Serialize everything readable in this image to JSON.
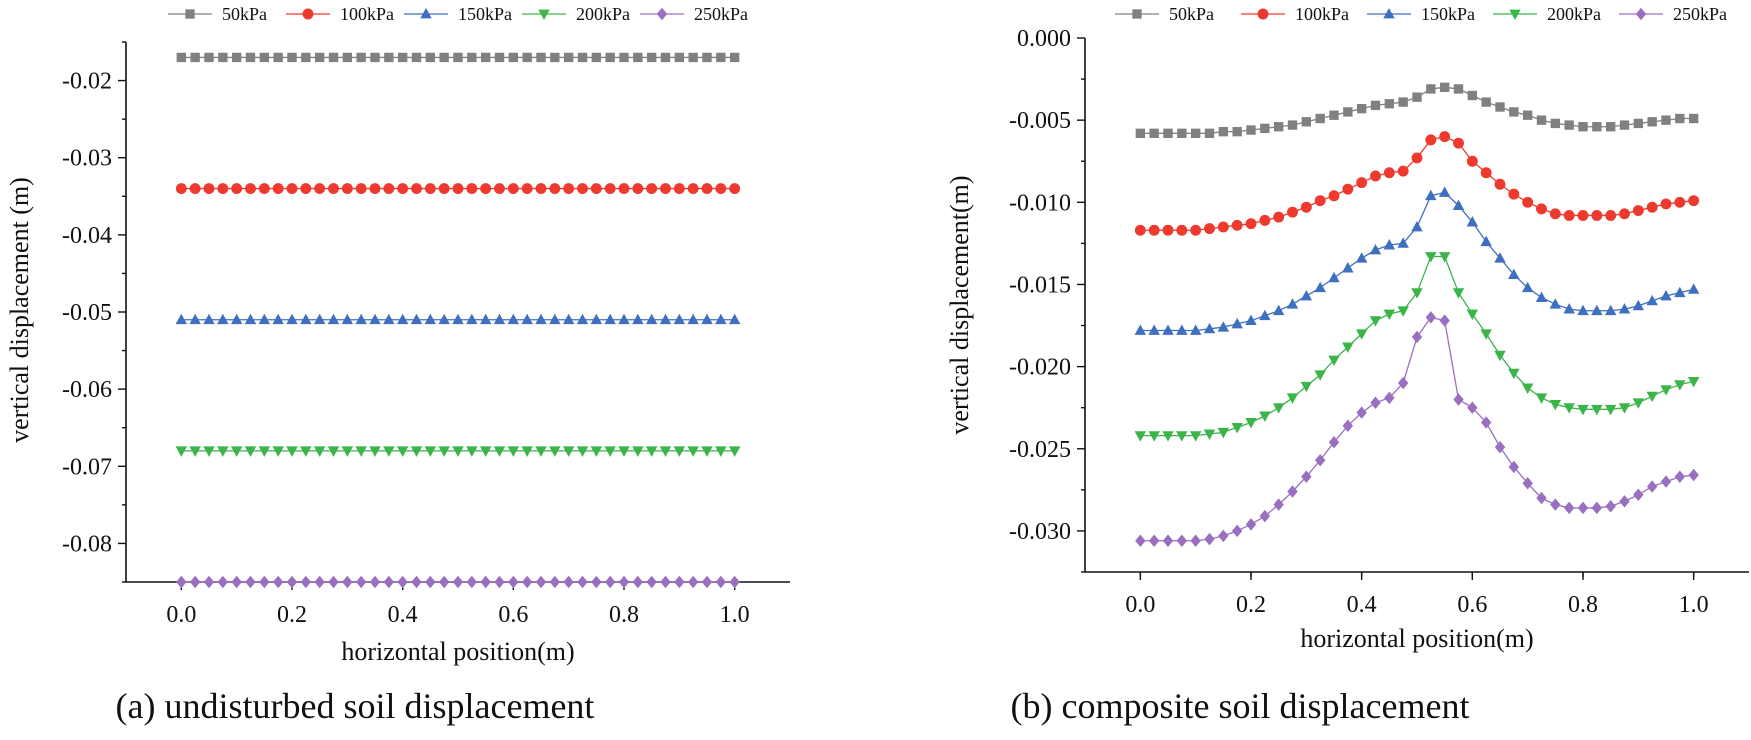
{
  "captions": {
    "left": "(a) undisturbed soil displacement",
    "right": "(b) composite soil displacement"
  },
  "legend": {
    "entries": [
      "50kPa",
      "100kPa",
      "150kPa",
      "200kPa",
      "250kPa"
    ]
  },
  "colors": {
    "series_50": "#808080",
    "series_100": "#ee3a2e",
    "series_150": "#3f6fbf",
    "series_200": "#3bb54a",
    "series_250": "#9b6fbf",
    "axis": "#111111"
  },
  "chart_data": [
    {
      "id": "a",
      "type": "line",
      "title": "(a) undisturbed soil displacement",
      "xlabel": "horizontal position(m)",
      "ylabel": "vertical  displacement (m)",
      "xlim": [
        -0.1,
        1.1
      ],
      "ylim": [
        -0.085,
        -0.015
      ],
      "xticks": [
        0.0,
        0.2,
        0.4,
        0.6,
        0.8,
        1.0
      ],
      "xtick_labels": [
        "0.0",
        "0.2",
        "0.4",
        "0.6",
        "0.8",
        "1.0"
      ],
      "yticks": [
        -0.02,
        -0.03,
        -0.04,
        -0.05,
        -0.06,
        -0.07,
        -0.08
      ],
      "ytick_labels": [
        "-0.02",
        "-0.03",
        "-0.04",
        "-0.05",
        "-0.06",
        "-0.07",
        "-0.08"
      ],
      "x_count": 41,
      "x_range": [
        0.0,
        1.0
      ],
      "series": [
        {
          "name": "50kPa",
          "marker": "square",
          "constant": -0.017
        },
        {
          "name": "100kPa",
          "marker": "circle",
          "constant": -0.034
        },
        {
          "name": "150kPa",
          "marker": "triangle-up",
          "constant": -0.051
        },
        {
          "name": "200kPa",
          "marker": "triangle-down",
          "constant": -0.068
        },
        {
          "name": "250kPa",
          "marker": "diamond",
          "constant": -0.085
        }
      ]
    },
    {
      "id": "b",
      "type": "line",
      "title": "(b) composite soil displacement",
      "xlabel": "horizontal position(m)",
      "ylabel": "vertical  displacement(m)",
      "xlim": [
        -0.1,
        1.1
      ],
      "ylim": [
        -0.0325,
        0.0
      ],
      "xticks": [
        0.0,
        0.2,
        0.4,
        0.6,
        0.8,
        1.0
      ],
      "xtick_labels": [
        "0.0",
        "0.2",
        "0.4",
        "0.6",
        "0.8",
        "1.0"
      ],
      "yticks": [
        0.0,
        -0.005,
        -0.01,
        -0.015,
        -0.02,
        -0.025,
        -0.03
      ],
      "ytick_labels": [
        "0.000",
        "-0.005",
        "-0.010",
        "-0.015",
        "-0.020",
        "-0.025",
        "-0.030"
      ],
      "x_count": 41,
      "x_range": [
        0.0,
        1.0
      ],
      "series": [
        {
          "name": "50kPa",
          "marker": "square",
          "values": [
            -0.0058,
            -0.0058,
            -0.0058,
            -0.0058,
            -0.0058,
            -0.0058,
            -0.0057,
            -0.0057,
            -0.0056,
            -0.0055,
            -0.0054,
            -0.0053,
            -0.0051,
            -0.0049,
            -0.0047,
            -0.0045,
            -0.0043,
            -0.0041,
            -0.004,
            -0.0039,
            -0.0036,
            -0.0031,
            -0.003,
            -0.0031,
            -0.0035,
            -0.0039,
            -0.0042,
            -0.0045,
            -0.0047,
            -0.005,
            -0.0052,
            -0.0053,
            -0.0054,
            -0.0054,
            -0.0054,
            -0.0053,
            -0.0052,
            -0.0051,
            -0.005,
            -0.0049,
            -0.0049
          ]
        },
        {
          "name": "100kPa",
          "marker": "circle",
          "values": [
            -0.0117,
            -0.0117,
            -0.0117,
            -0.0117,
            -0.0117,
            -0.0116,
            -0.0115,
            -0.0114,
            -0.0113,
            -0.0111,
            -0.0109,
            -0.0106,
            -0.0103,
            -0.0099,
            -0.0096,
            -0.0092,
            -0.0088,
            -0.0084,
            -0.0082,
            -0.0081,
            -0.0073,
            -0.0062,
            -0.006,
            -0.0064,
            -0.0075,
            -0.0082,
            -0.0089,
            -0.0095,
            -0.01,
            -0.0104,
            -0.0107,
            -0.0108,
            -0.0108,
            -0.0108,
            -0.0108,
            -0.0107,
            -0.0105,
            -0.0103,
            -0.0101,
            -0.01,
            -0.0099
          ]
        },
        {
          "name": "150kPa",
          "marker": "triangle-up",
          "values": [
            -0.0178,
            -0.0178,
            -0.0178,
            -0.0178,
            -0.0178,
            -0.0177,
            -0.0176,
            -0.0174,
            -0.0172,
            -0.0169,
            -0.0166,
            -0.0162,
            -0.0157,
            -0.0152,
            -0.0146,
            -0.014,
            -0.0134,
            -0.0129,
            -0.0126,
            -0.0125,
            -0.0115,
            -0.0096,
            -0.0094,
            -0.0102,
            -0.0112,
            -0.0124,
            -0.0134,
            -0.0144,
            -0.0152,
            -0.0158,
            -0.0162,
            -0.0165,
            -0.0166,
            -0.0166,
            -0.0166,
            -0.0165,
            -0.0163,
            -0.016,
            -0.0157,
            -0.0155,
            -0.0153
          ]
        },
        {
          "name": "200kPa",
          "marker": "triangle-down",
          "values": [
            -0.0242,
            -0.0242,
            -0.0242,
            -0.0242,
            -0.0242,
            -0.0241,
            -0.024,
            -0.0237,
            -0.0234,
            -0.023,
            -0.0225,
            -0.0219,
            -0.0212,
            -0.0205,
            -0.0196,
            -0.0188,
            -0.018,
            -0.0172,
            -0.0168,
            -0.0166,
            -0.0155,
            -0.0133,
            -0.0133,
            -0.0155,
            -0.0168,
            -0.018,
            -0.0193,
            -0.0204,
            -0.0213,
            -0.0219,
            -0.0223,
            -0.0225,
            -0.0226,
            -0.0226,
            -0.0226,
            -0.0225,
            -0.0222,
            -0.0218,
            -0.0214,
            -0.0211,
            -0.0209
          ]
        },
        {
          "name": "250kPa",
          "marker": "diamond",
          "values": [
            -0.0306,
            -0.0306,
            -0.0306,
            -0.0306,
            -0.0306,
            -0.0305,
            -0.0303,
            -0.03,
            -0.0296,
            -0.0291,
            -0.0284,
            -0.0276,
            -0.0267,
            -0.0257,
            -0.0246,
            -0.0236,
            -0.0228,
            -0.0222,
            -0.0219,
            -0.021,
            -0.0182,
            -0.017,
            -0.0172,
            -0.022,
            -0.0225,
            -0.0234,
            -0.0249,
            -0.0261,
            -0.0271,
            -0.028,
            -0.0284,
            -0.0286,
            -0.0286,
            -0.0286,
            -0.0285,
            -0.0282,
            -0.0278,
            -0.0273,
            -0.027,
            -0.0267,
            -0.0266
          ]
        }
      ]
    }
  ]
}
